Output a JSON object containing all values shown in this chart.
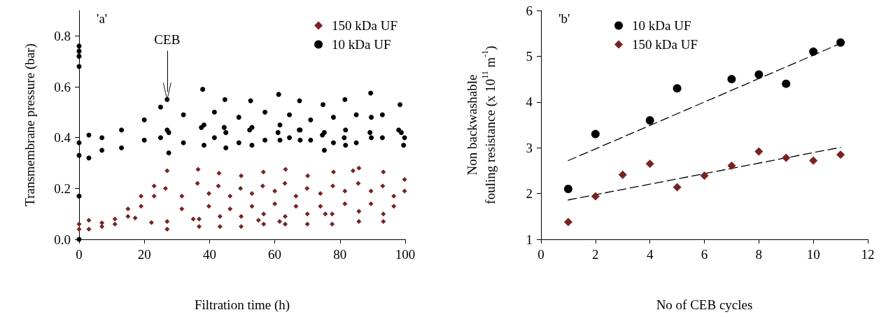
{
  "chart_data": [
    {
      "type": "scatter",
      "xlabel": "Filtration time (h)",
      "ylabel": "Transmembrane pressure (bar)",
      "xlim": [
        0,
        100
      ],
      "xticks": [
        0,
        20,
        40,
        60,
        80,
        100
      ],
      "ylim": [
        0,
        0.9
      ],
      "yticks": [
        {
          "value": 0,
          "label": "0.0"
        },
        0.2,
        0.4,
        0.6,
        0.8
      ],
      "legend": "top right",
      "grid": false,
      "annotations": [
        "'a'",
        {
          "text": "CEB",
          "x": 27,
          "y": 0.58
        }
      ],
      "series": [
        {
          "name": "150 kDa UF",
          "color": "#7f1f1f",
          "marker": "diamond",
          "x": [
            0,
            0,
            3,
            3,
            7,
            7,
            11,
            11,
            15,
            15,
            19,
            19,
            23,
            23,
            26.5,
            27,
            17.2,
            22.2,
            27,
            27,
            31.5,
            31.5,
            36.3,
            36.5,
            36.8,
            36.8,
            39.8,
            39.8,
            42.7,
            42.9,
            43.2,
            43.2,
            46.3,
            46.3,
            49.5,
            49.7,
            49.7,
            49.7,
            53,
            53,
            56.3,
            56.5,
            56.6,
            56.6,
            60,
            60,
            63.1,
            63.3,
            63.2,
            63.2,
            66.5,
            66.5,
            69.9,
            70.1,
            70,
            70,
            74,
            74,
            77.8,
            78,
            77.6,
            77.6,
            81.5,
            81.5,
            85.6,
            85.8,
            85.8,
            85.8,
            89.5,
            89.5,
            93.1,
            93.3,
            93.3,
            93.3,
            96.5,
            96.5,
            99.8,
            99.8,
            35,
            55,
            61.5,
            75.5,
            84
          ],
          "values": [
            0.04,
            0.06,
            0.04,
            0.075,
            0.05,
            0.065,
            0.06,
            0.08,
            0.09,
            0.12,
            0.13,
            0.17,
            0.17,
            0.21,
            0.2,
            0.27,
            0.084,
            0.066,
            0.04,
            0.07,
            0.12,
            0.17,
            0.22,
            0.275,
            0.05,
            0.08,
            0.13,
            0.18,
            0.21,
            0.26,
            0.05,
            0.09,
            0.12,
            0.17,
            0.2,
            0.25,
            0.05,
            0.09,
            0.13,
            0.18,
            0.21,
            0.265,
            0.06,
            0.1,
            0.14,
            0.19,
            0.22,
            0.275,
            0.06,
            0.09,
            0.13,
            0.17,
            0.2,
            0.25,
            0.06,
            0.1,
            0.13,
            0.18,
            0.21,
            0.265,
            0.06,
            0.1,
            0.14,
            0.19,
            0.22,
            0.28,
            0.07,
            0.11,
            0.14,
            0.19,
            0.21,
            0.265,
            0.07,
            0.1,
            0.13,
            0.17,
            0.19,
            0.235,
            0.08,
            0.075,
            0.07,
            0.1,
            0.27
          ]
        },
        {
          "name": "10 kDa UF",
          "color": "#000000",
          "marker": "circle",
          "x": [
            0,
            0,
            0,
            0,
            0,
            0,
            0,
            0,
            3,
            3,
            7,
            7,
            13,
            13,
            20,
            20,
            25,
            25,
            27,
            27,
            27.5,
            27.5,
            32,
            32,
            37.5,
            37.9,
            38.3,
            38.3,
            41.5,
            41.5,
            44.5,
            44.7,
            45,
            45,
            49,
            49,
            52.3,
            52.6,
            53,
            53,
            57,
            57,
            61,
            61.2,
            61.6,
            61.6,
            64.5,
            64.5,
            67.5,
            67.6,
            67.8,
            67.8,
            71,
            71,
            74.6,
            74.8,
            75.2,
            75.2,
            78,
            78,
            81.3,
            81.5,
            81.7,
            81.7,
            85,
            85,
            89.2,
            89.4,
            89.6,
            89.6,
            93,
            93,
            98,
            98.4,
            98.8,
            99.5,
            99.8
          ],
          "values": [
            0.76,
            0.74,
            0.72,
            0.68,
            0.17,
            0,
            0.33,
            0.38,
            0.32,
            0.41,
            0.35,
            0.4,
            0.36,
            0.43,
            0.39,
            0.47,
            0.4,
            0.52,
            0.43,
            0.55,
            0.34,
            0.42,
            0.38,
            0.49,
            0.44,
            0.59,
            0.37,
            0.45,
            0.4,
            0.5,
            0.44,
            0.55,
            0.36,
            0.42,
            0.38,
            0.48,
            0.43,
            0.545,
            0.37,
            0.44,
            0.39,
            0.5,
            0.42,
            0.57,
            0.39,
            0.45,
            0.4,
            0.49,
            0.43,
            0.545,
            0.39,
            0.43,
            0.39,
            0.47,
            0.41,
            0.53,
            0.35,
            0.42,
            0.38,
            0.48,
            0.4,
            0.55,
            0.37,
            0.43,
            0.38,
            0.49,
            0.42,
            0.575,
            0.4,
            0.48,
            0.4,
            0.49,
            0.43,
            0.53,
            0.42,
            0.37,
            0.4
          ]
        }
      ]
    },
    {
      "type": "scatter",
      "xlabel": "No of CEB cycles",
      "ylabel": "Non backwashable\nfouling resistance (x 10$^{11}$ m$^{-1}$)",
      "xlim": [
        0,
        12
      ],
      "xticks": [
        0,
        2,
        4,
        6,
        8,
        10,
        12
      ],
      "ylim": [
        1,
        6
      ],
      "yticks": [
        1,
        2,
        3,
        4,
        5,
        6
      ],
      "legend": "top left",
      "grid": false,
      "annotations": [
        "'b'"
      ],
      "series": [
        {
          "name": "10 kDa UF",
          "color": "#000000",
          "marker": "circle",
          "x": [
            1,
            2,
            4,
            5,
            7,
            8,
            9,
            10,
            11
          ],
          "values": [
            2.1,
            3.3,
            3.6,
            4.3,
            4.5,
            4.6,
            4.4,
            5.1,
            5.3
          ]
        },
        {
          "name": "150 kDa UF",
          "color": "#7f1f1f",
          "marker": "diamond",
          "x": [
            1,
            2,
            3,
            4,
            5,
            6,
            7,
            8,
            9,
            10,
            11
          ],
          "values": [
            1.38,
            1.94,
            2.41,
            2.65,
            2.14,
            2.39,
            2.61,
            2.92,
            2.78,
            2.72,
            2.85
          ]
        },
        {
          "type": "line",
          "color": "#000000",
          "marker": "none",
          "line_style": "dashed",
          "x": [
            1,
            11
          ],
          "values": [
            2.72,
            5.28
          ]
        },
        {
          "type": "line",
          "color": "#000000",
          "marker": "none",
          "line_style": "dashed",
          "x": [
            1,
            11
          ],
          "values": [
            1.86,
            3.01
          ]
        }
      ]
    }
  ]
}
